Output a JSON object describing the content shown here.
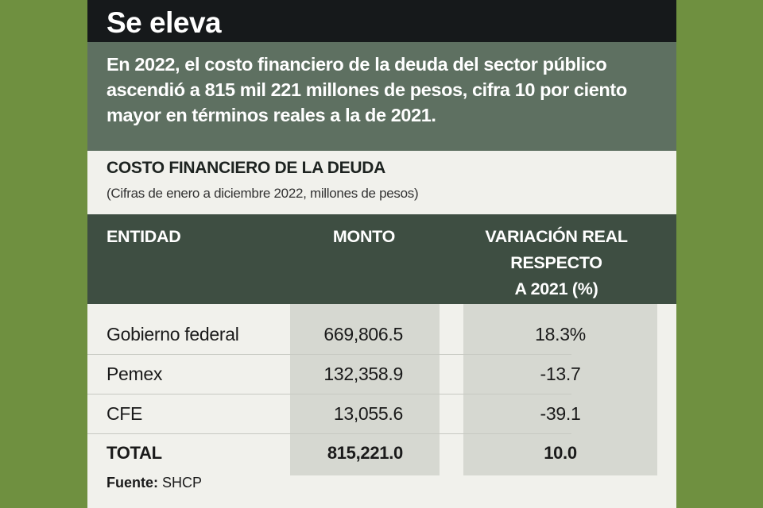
{
  "header": {
    "title": "Se eleva"
  },
  "intro": "En 2022, el costo financiero de la deuda del sector público ascendió a 815 mil 221 millones de pesos, cifra 10 por ciento mayor en términos reales a la de 2021.",
  "table": {
    "title": "COSTO FINANCIERO DE LA DEUDA",
    "subtitle": "(Cifras de enero a diciembre 2022, millones de pesos)",
    "columns": {
      "entity": "ENTIDAD",
      "amount": "MONTO",
      "variation_line1": "VARIACIÓN REAL",
      "variation_line2": "RESPECTO",
      "variation_line3": "A 2021 (%)"
    },
    "rows": [
      {
        "entity": "Gobierno federal",
        "amount": "669,806.5",
        "variation": "18.3%"
      },
      {
        "entity": "Pemex",
        "amount": "132,358.9",
        "variation": "-13.7"
      },
      {
        "entity": "CFE",
        "amount": "13,055.6",
        "variation": "-39.1"
      }
    ],
    "total": {
      "entity": "TOTAL",
      "amount": "815,221.0",
      "variation": "10.0"
    }
  },
  "source": {
    "label": "Fuente:",
    "value": "SHCP"
  },
  "colors": {
    "page_background": "#6f9040",
    "title_bar": "#16191b",
    "intro_band": "#5e7061",
    "table_header": "#3e4e42",
    "column_shade": "#d6d8d1"
  }
}
